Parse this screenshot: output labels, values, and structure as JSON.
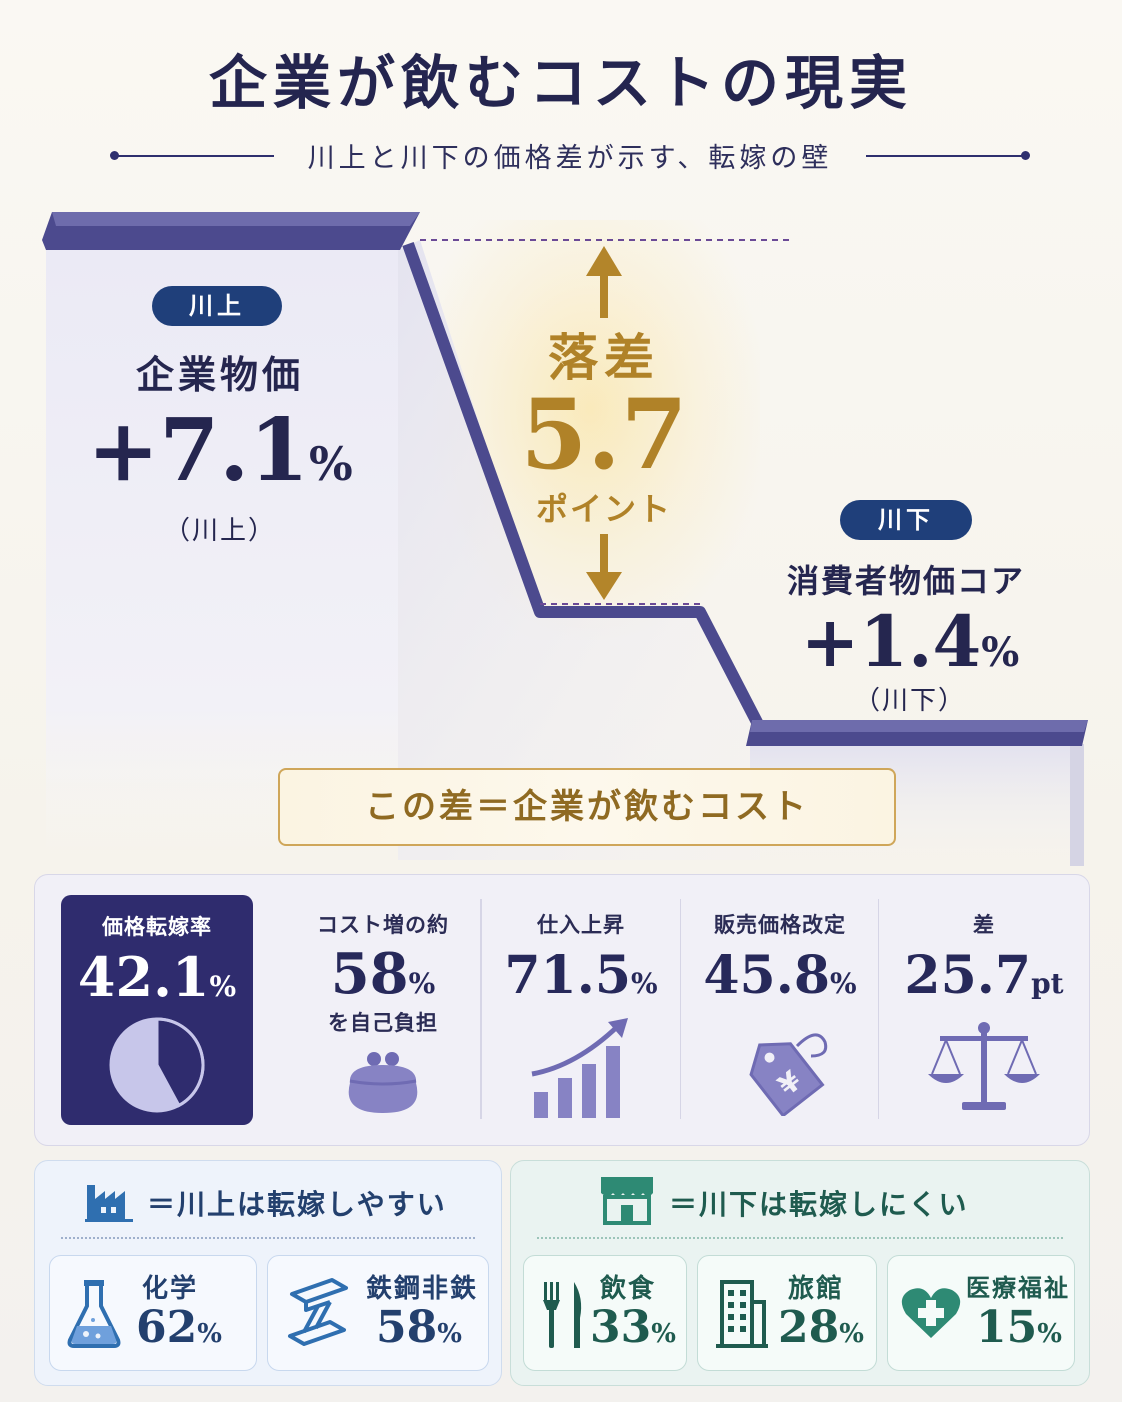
{
  "title": "企業が飲むコストの現実",
  "subtitle": "川上と川下の価格差が示す、転嫁の壁",
  "upstream": {
    "badge": "川上",
    "label": "企業物価",
    "value": "+7.1",
    "unit": "%",
    "note": "（川上）"
  },
  "gap": {
    "label": "落差",
    "value": "5.7",
    "unit": "ポイント"
  },
  "downstream": {
    "badge": "川下",
    "label": "消費者物価コア",
    "value": "+1.4",
    "unit": "%",
    "note": "（川下）"
  },
  "formula": "この差＝企業が飲むコスト",
  "chart_data": {
    "type": "bar",
    "categories": [
      "川上 企業物価",
      "川下 消費者物価コア"
    ],
    "values": [
      7.1,
      1.4
    ],
    "difference": 5.7
  },
  "metrics": [
    {
      "label": "価格転嫁率",
      "value": "42.1",
      "unit": "%",
      "icon": "pie-chart-icon",
      "pie_fraction": 0.421
    },
    {
      "label": "コスト増の約",
      "value": "58",
      "unit": "%",
      "sub": "を自己負担",
      "icon": "purse-icon"
    },
    {
      "label": "仕入上昇",
      "value": "71.5",
      "unit": "%",
      "icon": "rising-bars-icon"
    },
    {
      "label": "販売価格改定",
      "value": "45.8",
      "unit": "%",
      "icon": "yen-tag-icon"
    },
    {
      "label": "差",
      "value": "25.7",
      "unit": "pt",
      "icon": "balance-scale-icon"
    }
  ],
  "upstream_sector": {
    "heading": "＝川上は転嫁しやすい",
    "items": [
      {
        "name": "化学",
        "value": "62",
        "unit": "%",
        "icon": "flask-icon"
      },
      {
        "name": "鉄鋼非鉄",
        "value": "58",
        "unit": "%",
        "icon": "steel-beam-icon"
      }
    ]
  },
  "downstream_sector": {
    "heading": "＝川下は転嫁しにくい",
    "items": [
      {
        "name": "飲食",
        "value": "33",
        "unit": "%",
        "icon": "fork-knife-icon"
      },
      {
        "name": "旅館",
        "value": "28",
        "unit": "%",
        "icon": "building-icon"
      },
      {
        "name": "医療福祉",
        "value": "15",
        "unit": "%",
        "icon": "heart-cross-icon"
      }
    ]
  },
  "colors": {
    "navy": "#2f2c6e",
    "gold": "#b08228",
    "blue_accent": "#1f3f7a",
    "green_accent": "#1f5b4f"
  }
}
